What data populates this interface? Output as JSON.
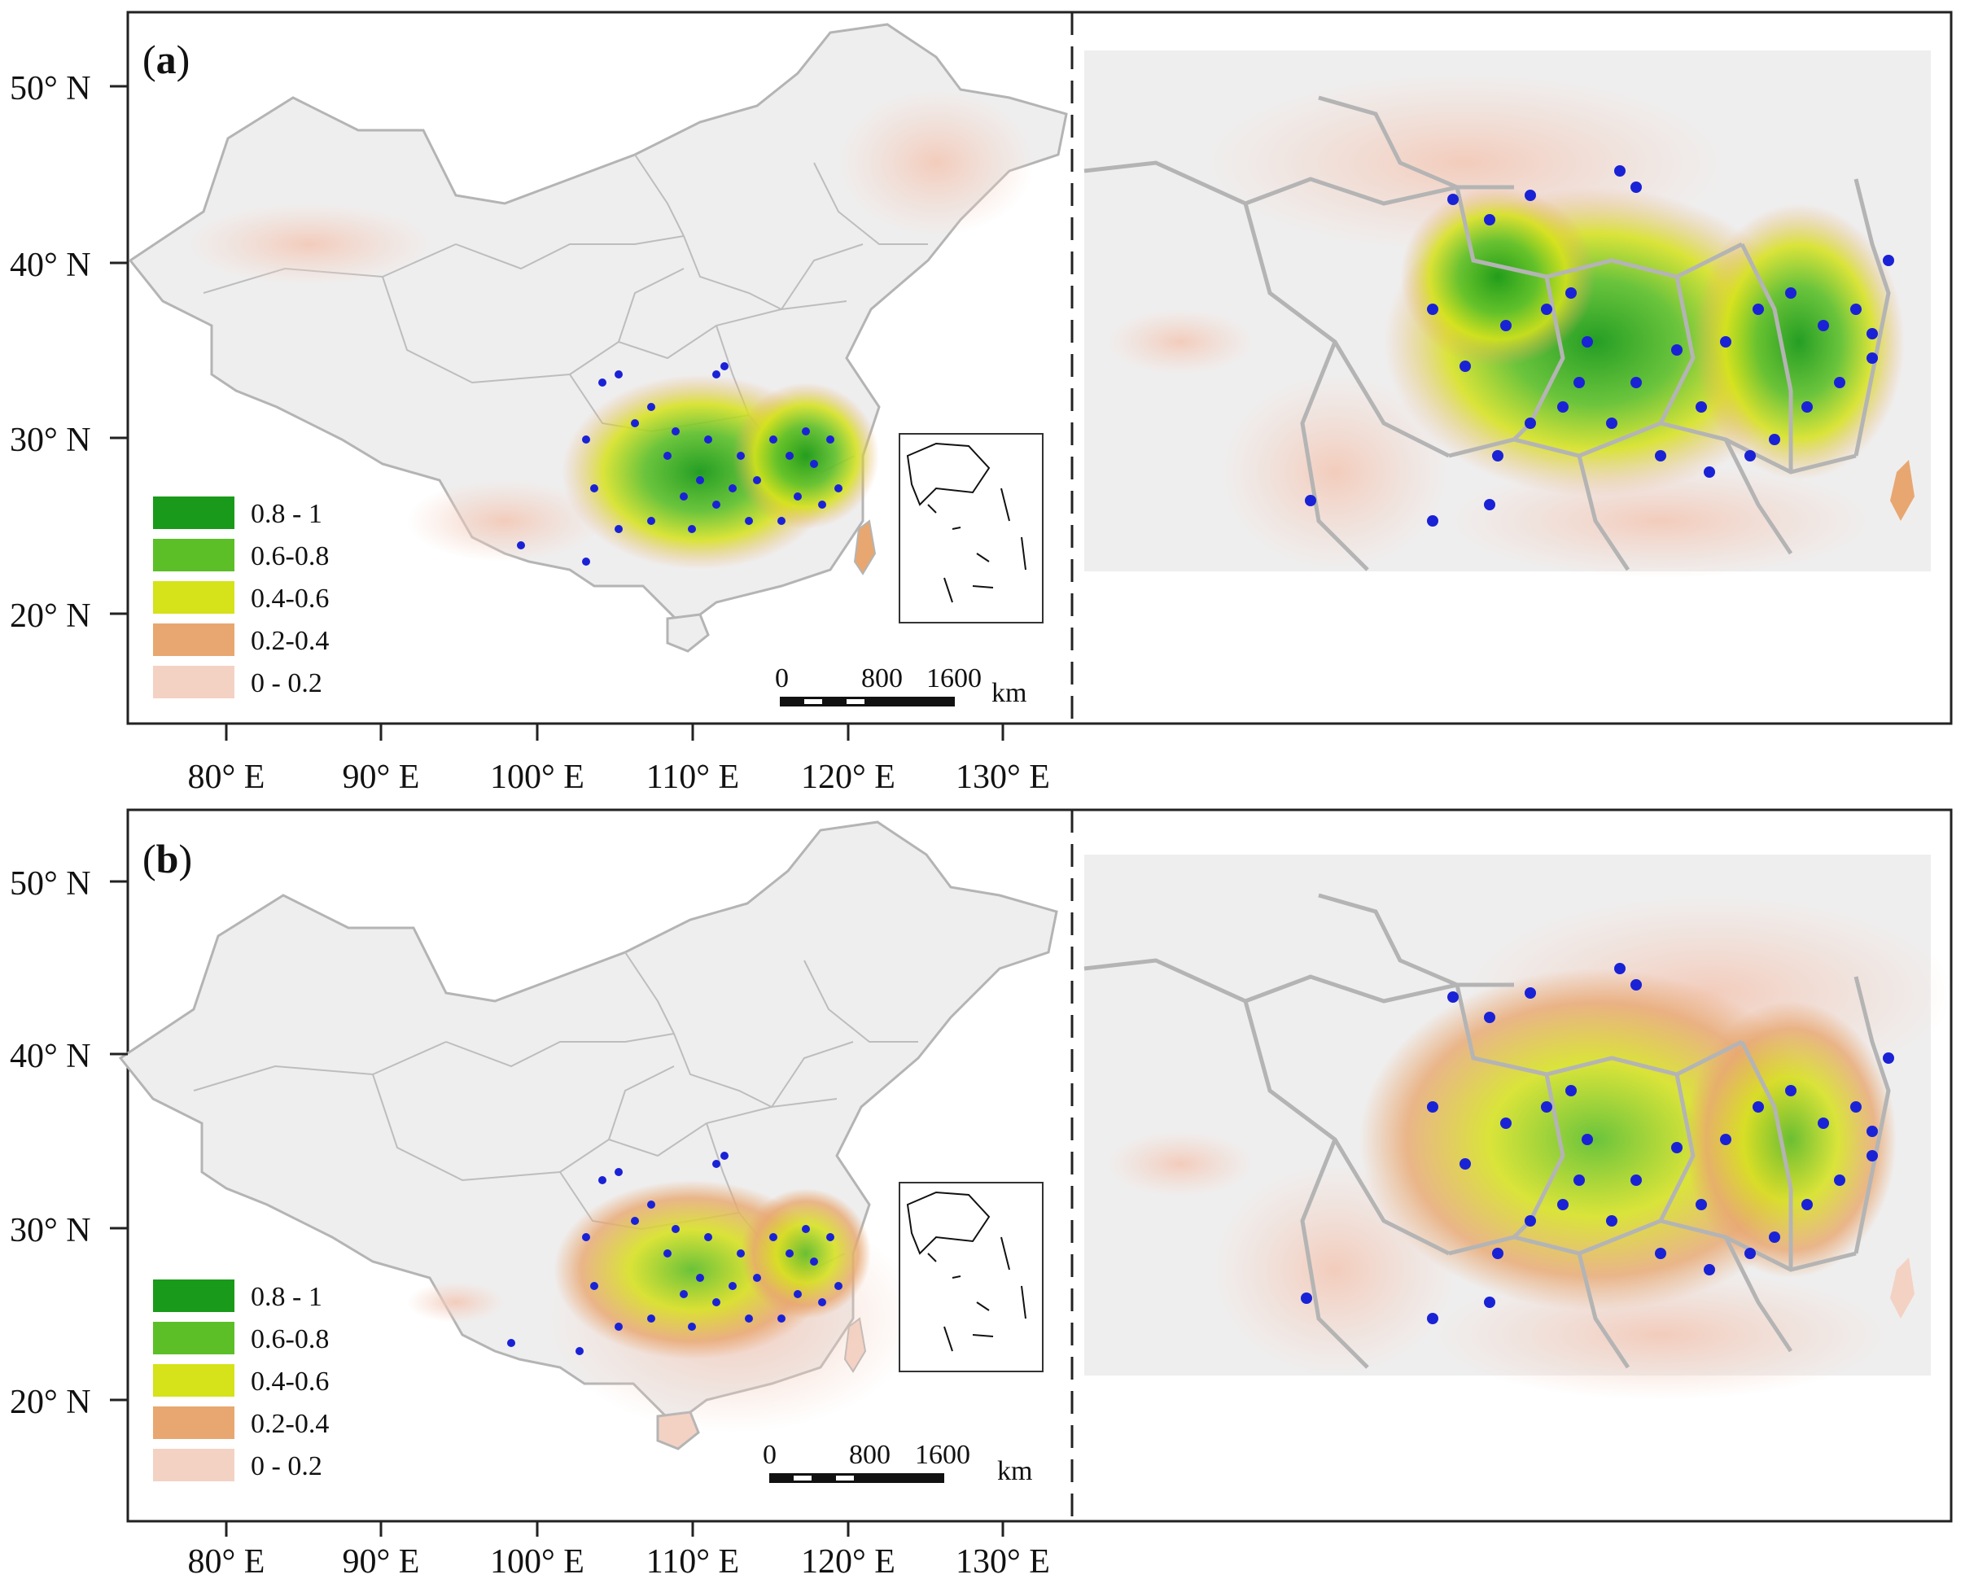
{
  "panels": [
    {
      "id": "a",
      "label_parts": [
        "(",
        "a",
        ")"
      ],
      "legend": [
        {
          "label": "0.8 - 1",
          "color": "#1a9a1a"
        },
        {
          "label": "0.6-0.8",
          "color": "#5cbf28"
        },
        {
          "label": "0.4-0.6",
          "color": "#d6e21a"
        },
        {
          "label": "0.2-0.4",
          "color": "#e8a770"
        },
        {
          "label": "0 - 0.2",
          "color": "#f3d2c4"
        }
      ],
      "scale_bar": {
        "ticks": [
          "0",
          "800",
          "1600"
        ],
        "unit": "km"
      },
      "lat_labels": [
        "50° N",
        "40° N",
        "30° N",
        "20° N"
      ],
      "lon_labels": [
        "80° E",
        "90° E",
        "100° E",
        "110° E",
        "120° E",
        "130° E"
      ]
    },
    {
      "id": "b",
      "label_parts": [
        "(",
        "b",
        ")"
      ],
      "legend": [
        {
          "label": "0.8 - 1",
          "color": "#1a9a1a"
        },
        {
          "label": "0.6-0.8",
          "color": "#5cbf28"
        },
        {
          "label": "0.4-0.6",
          "color": "#d6e21a"
        },
        {
          "label": "0.2-0.4",
          "color": "#e8a770"
        },
        {
          "label": "0 - 0.2",
          "color": "#f3d2c4"
        }
      ],
      "scale_bar": {
        "ticks": [
          "0",
          "800",
          "1600"
        ],
        "unit": "km"
      },
      "lat_labels": [
        "50° N",
        "40° N",
        "30° N",
        "20° N"
      ],
      "lon_labels": [
        "80° E",
        "90° E",
        "100° E",
        "110° E",
        "120° E",
        "130° E"
      ]
    }
  ],
  "colors": {
    "land": "#efeeee",
    "boundary": "#b4b4b4",
    "low": "#f3d2c4",
    "occurrence_points": "#1a22d6"
  }
}
